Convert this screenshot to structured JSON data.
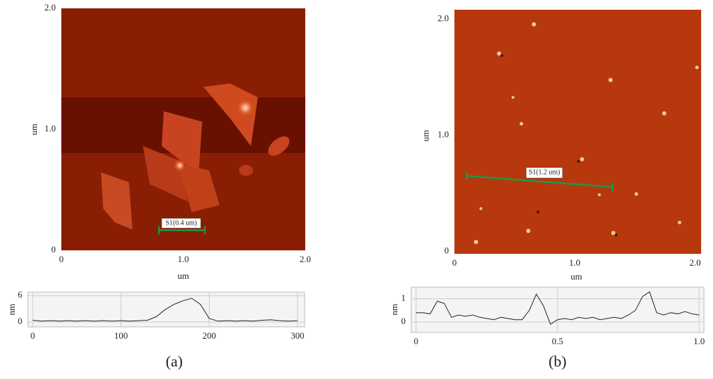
{
  "chart_data": [
    {
      "type": "image",
      "xlabel": "um",
      "ylabel": "um",
      "annotation": "S1(0.4 um)",
      "xlim": [
        0,
        2
      ],
      "ylim": [
        0,
        2
      ],
      "xticks": [
        0,
        {
          "value": 1,
          "label": "1.0"
        },
        {
          "value": 2,
          "label": "2.0"
        }
      ],
      "yticks": [
        0,
        {
          "value": 1,
          "label": "1.0"
        },
        {
          "value": 2,
          "label": "2.0"
        }
      ],
      "panel_label": "(a)"
    },
    {
      "type": "image",
      "xlabel": "um",
      "ylabel": "um",
      "annotation": "S1(1.2 um)",
      "xlim": [
        0,
        2.05
      ],
      "ylim": [
        -0.02,
        2.08
      ],
      "xticks": [
        0,
        {
          "value": 1,
          "label": "1.0"
        },
        {
          "value": 2,
          "label": "2.0"
        }
      ],
      "yticks": [
        0,
        {
          "value": 1,
          "label": "1.0"
        },
        {
          "value": 2,
          "label": "2.0"
        }
      ],
      "panel_label": "(b)"
    },
    {
      "type": "line",
      "ylabel": "nm",
      "color": "#222",
      "grid": true,
      "xlim": [
        -5.5,
        308
      ],
      "ylim": [
        -1.1,
        6.8
      ],
      "xticks": [
        0,
        100,
        200,
        300
      ],
      "yticks": [
        0,
        6
      ],
      "x": [
        0,
        10,
        20,
        30,
        40,
        50,
        60,
        70,
        80,
        90,
        100,
        110,
        120,
        130,
        140,
        150,
        160,
        170,
        180,
        190,
        200,
        210,
        220,
        230,
        240,
        250,
        260,
        270,
        280,
        290,
        300
      ],
      "values": [
        0.4,
        0.2,
        0.3,
        0.2,
        0.3,
        0.2,
        0.3,
        0.2,
        0.3,
        0.2,
        0.3,
        0.2,
        0.3,
        0.4,
        1.2,
        2.8,
        4.0,
        4.8,
        5.4,
        4.0,
        0.8,
        0.2,
        0.3,
        0.2,
        0.3,
        0.2,
        0.4,
        0.5,
        0.3,
        0.2,
        0.3
      ]
    },
    {
      "type": "line",
      "ylabel": "nm",
      "color": "#222",
      "grid": true,
      "xlim": [
        -0.017,
        1.017
      ],
      "ylim": [
        -0.45,
        1.5
      ],
      "xticks": [
        0,
        {
          "value": 0.5,
          "label": "0.5"
        },
        {
          "value": 1,
          "label": "1.0"
        }
      ],
      "yticks": [
        0,
        1
      ],
      "x": [
        0,
        0.025,
        0.05,
        0.075,
        0.1,
        0.125,
        0.15,
        0.175,
        0.2,
        0.225,
        0.25,
        0.275,
        0.3,
        0.325,
        0.35,
        0.375,
        0.4,
        0.425,
        0.45,
        0.475,
        0.5,
        0.525,
        0.55,
        0.575,
        0.6,
        0.625,
        0.65,
        0.675,
        0.7,
        0.725,
        0.75,
        0.775,
        0.8,
        0.825,
        0.85,
        0.875,
        0.9,
        0.925,
        0.95,
        0.975,
        1.0
      ],
      "values": [
        0.4,
        0.4,
        0.35,
        0.9,
        0.8,
        0.2,
        0.3,
        0.25,
        0.3,
        0.2,
        0.15,
        0.1,
        0.2,
        0.15,
        0.1,
        0.1,
        0.5,
        1.2,
        0.7,
        -0.1,
        0.1,
        0.15,
        0.1,
        0.2,
        0.15,
        0.2,
        0.1,
        0.15,
        0.2,
        0.15,
        0.3,
        0.5,
        1.1,
        1.3,
        0.4,
        0.3,
        0.4,
        0.35,
        0.45,
        0.35,
        0.3
      ]
    }
  ]
}
